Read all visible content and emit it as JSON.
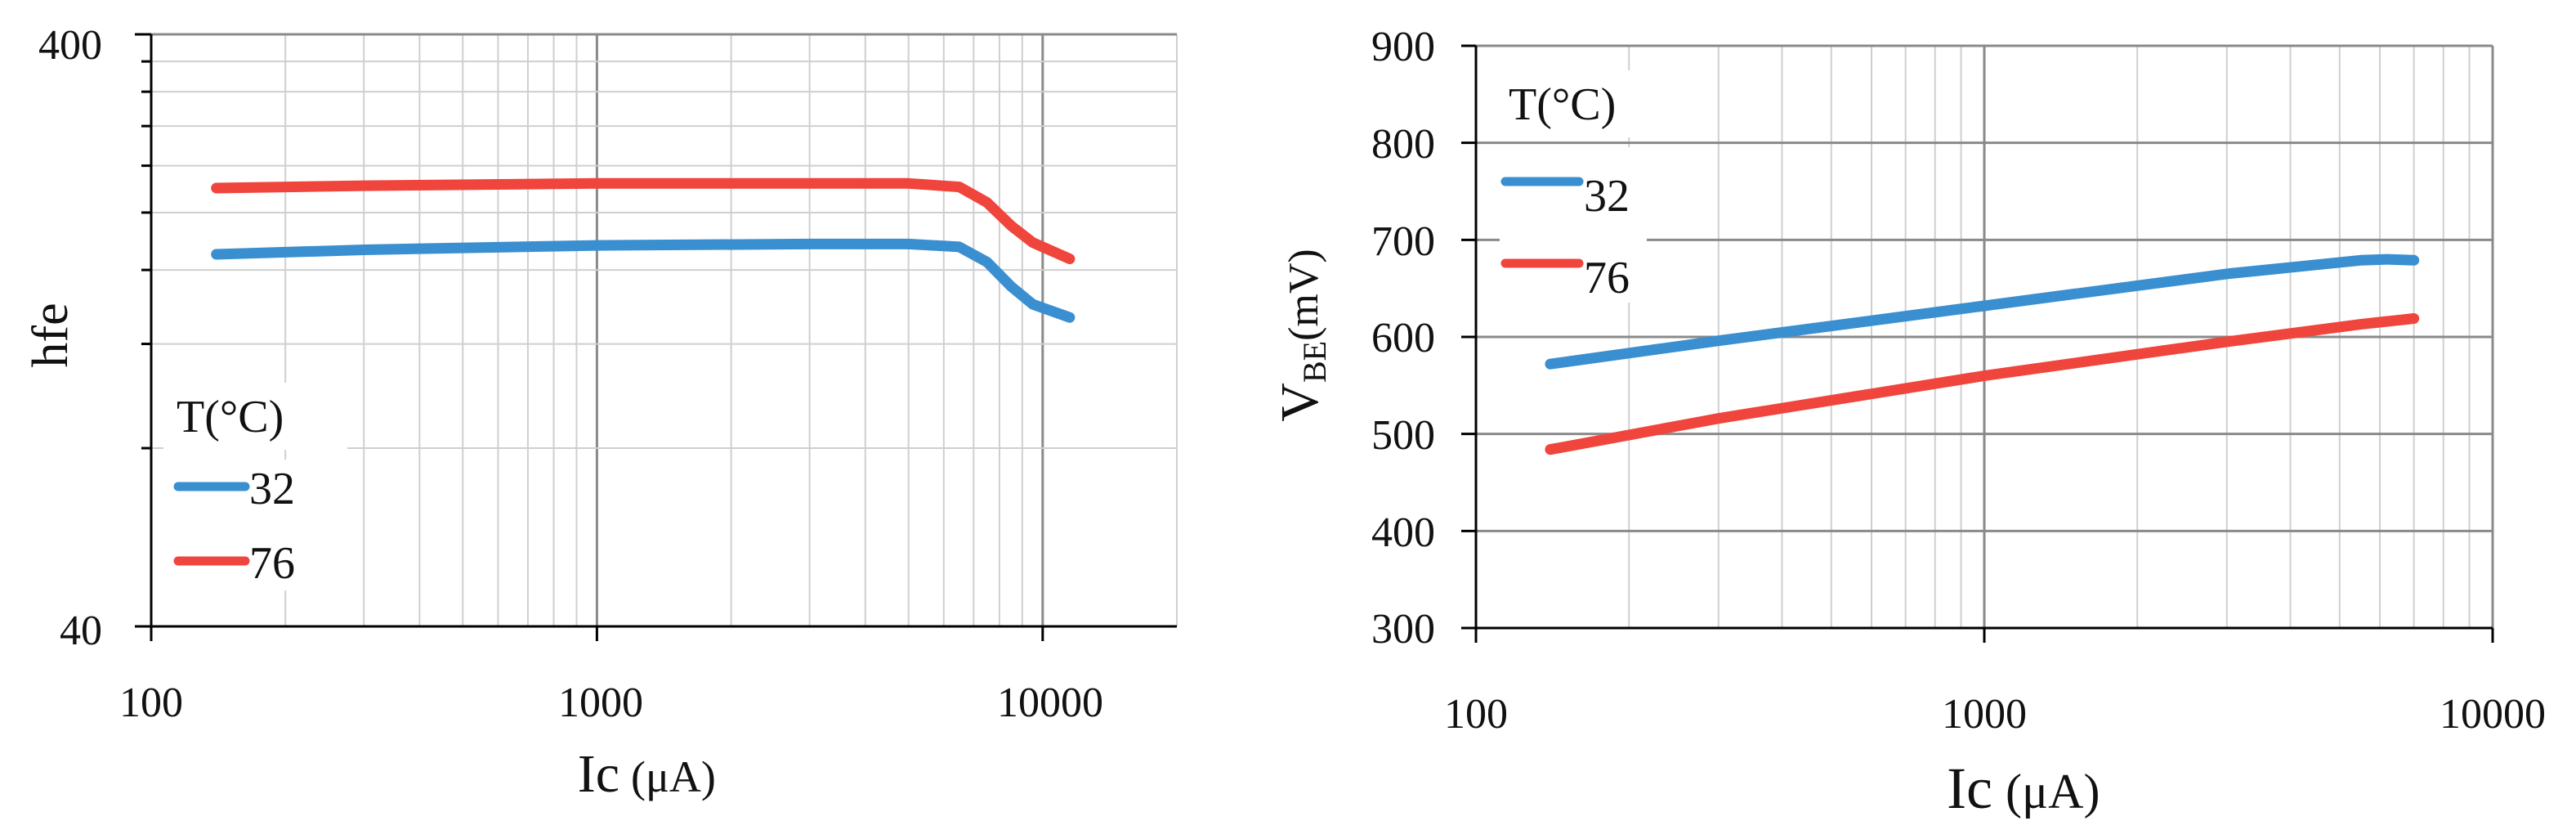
{
  "chart_data": [
    {
      "id": "hfe",
      "type": "line",
      "x_scale": "log",
      "y_scale": "log",
      "xlim": [
        100,
        20000
      ],
      "ylim": [
        40,
        400
      ],
      "x_ticks": [
        "100",
        "1000",
        "10000"
      ],
      "x_tick_values": [
        100,
        1000,
        10000
      ],
      "y_ticks": [
        "40",
        "400"
      ],
      "y_tick_values": [
        40,
        400
      ],
      "xlabel_main": "Ic",
      "xlabel_unit": "(μA)",
      "ylabel": "hfe",
      "legend_title": "T(°C)",
      "legend_position": "bottom-left",
      "grid": true,
      "series": [
        {
          "name": "32",
          "color": "#3a8fd0",
          "x": [
            140,
            300,
            1000,
            3000,
            5000,
            6500,
            7500,
            8500,
            9500,
            11500
          ],
          "y": [
            170,
            173,
            176,
            177,
            177,
            175,
            165,
            150,
            140,
            133
          ]
        },
        {
          "name": "76",
          "color": "#f0453c",
          "x": [
            140,
            300,
            1000,
            3000,
            5000,
            6500,
            7500,
            8500,
            9500,
            11500
          ],
          "y": [
            220,
            222,
            224,
            224,
            224,
            221,
            208,
            190,
            178,
            167
          ]
        }
      ]
    },
    {
      "id": "vbe",
      "type": "line",
      "x_scale": "log",
      "y_scale": "linear",
      "xlim": [
        100,
        10000
      ],
      "ylim": [
        300,
        900
      ],
      "x_ticks": [
        "100",
        "1000",
        "10000"
      ],
      "x_tick_values": [
        100,
        1000,
        10000
      ],
      "y_ticks": [
        "300",
        "400",
        "500",
        "600",
        "700",
        "800",
        "900"
      ],
      "y_tick_values": [
        300,
        400,
        500,
        600,
        700,
        800,
        900
      ],
      "xlabel_main": "Ic",
      "xlabel_unit": "(μA)",
      "ylabel_main": "V",
      "ylabel_sub": "BE",
      "ylabel_unit": "(mV)",
      "legend_title": "T(°C)",
      "legend_position": "top-left",
      "grid": true,
      "series": [
        {
          "name": "32",
          "color": "#3a8fd0",
          "x": [
            140,
            300,
            1000,
            3000,
            5500,
            6200,
            7000
          ],
          "y": [
            572,
            596,
            632,
            665,
            679,
            680,
            679
          ]
        },
        {
          "name": "76",
          "color": "#f0453c",
          "x": [
            140,
            300,
            1000,
            3000,
            5500,
            6200,
            7000
          ],
          "y": [
            484,
            516,
            560,
            595,
            613,
            616,
            619
          ]
        }
      ]
    }
  ]
}
